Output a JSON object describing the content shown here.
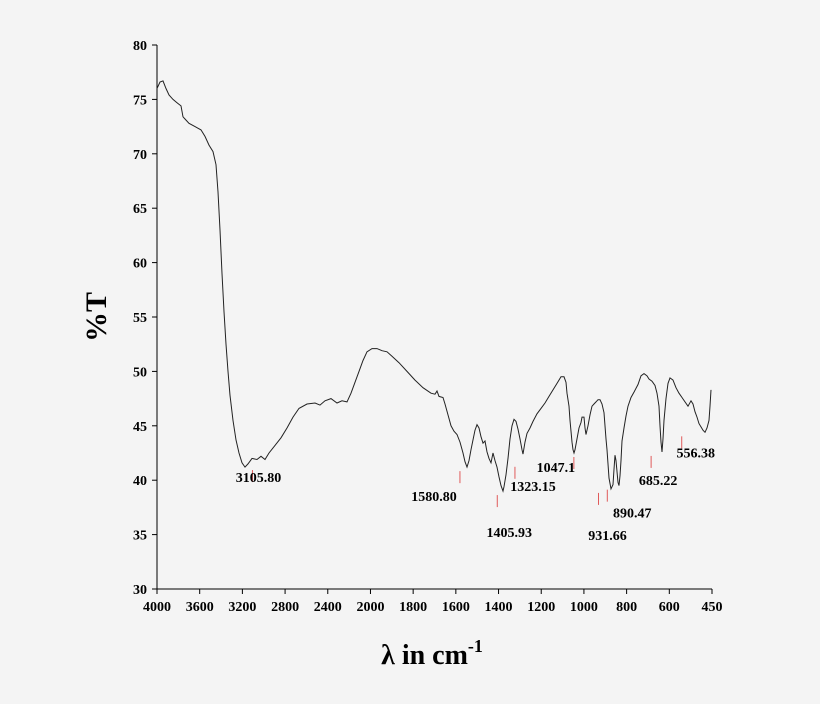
{
  "chart_data": {
    "type": "line",
    "title": "",
    "ylabel": "%T",
    "xlabel": "λ in cm",
    "xlabel_sup": "-1",
    "ylim": [
      30,
      80
    ],
    "y_ticks": [
      "30",
      "35",
      "40",
      "45",
      "50",
      "55",
      "60",
      "65",
      "70",
      "75",
      "80"
    ],
    "x_ticks": [
      "4000",
      "3600",
      "3200",
      "2800",
      "2400",
      "2000",
      "1800",
      "1600",
      "1400",
      "1200",
      "1000",
      "800",
      "600",
      "450"
    ],
    "grid": false,
    "legend": "none",
    "series": [
      {
        "points": [
          [
            0,
            76.0
          ],
          [
            3,
            76.6
          ],
          [
            6,
            76.7
          ],
          [
            9,
            76.0
          ],
          [
            12,
            75.4
          ],
          [
            16,
            75.0
          ],
          [
            20,
            74.7
          ],
          [
            24,
            74.4
          ],
          [
            26,
            73.4
          ],
          [
            28,
            73.2
          ],
          [
            32,
            72.8
          ],
          [
            38,
            72.5
          ],
          [
            44,
            72.2
          ],
          [
            48,
            71.6
          ],
          [
            52,
            70.8
          ],
          [
            56,
            70.2
          ],
          [
            59,
            69.0
          ],
          [
            61,
            66.5
          ],
          [
            63,
            63.0
          ],
          [
            65,
            59.0
          ],
          [
            67,
            55.5
          ],
          [
            69,
            52.5
          ],
          [
            71,
            50.0
          ],
          [
            73,
            47.8
          ],
          [
            76,
            45.5
          ],
          [
            79,
            43.7
          ],
          [
            82,
            42.5
          ],
          [
            85,
            41.6
          ],
          [
            88,
            41.2
          ],
          [
            91,
            41.5
          ],
          [
            95,
            42.0
          ],
          [
            100,
            41.9
          ],
          [
            104,
            42.2
          ],
          [
            108,
            41.9
          ],
          [
            112,
            42.5
          ],
          [
            118,
            43.2
          ],
          [
            124,
            43.9
          ],
          [
            130,
            44.8
          ],
          [
            136,
            45.8
          ],
          [
            142,
            46.6
          ],
          [
            150,
            47.0
          ],
          [
            158,
            47.1
          ],
          [
            163,
            46.9
          ],
          [
            168,
            47.3
          ],
          [
            174,
            47.5
          ],
          [
            180,
            47.1
          ],
          [
            185,
            47.3
          ],
          [
            190,
            47.2
          ],
          [
            194,
            48.0
          ],
          [
            198,
            49.0
          ],
          [
            202,
            50.0
          ],
          [
            206,
            51.0
          ],
          [
            210,
            51.8
          ],
          [
            215,
            52.1
          ],
          [
            220,
            52.1
          ],
          [
            225,
            51.9
          ],
          [
            230,
            51.8
          ],
          [
            235,
            51.4
          ],
          [
            242,
            50.8
          ],
          [
            250,
            50.0
          ],
          [
            258,
            49.2
          ],
          [
            266,
            48.5
          ],
          [
            274,
            48.0
          ],
          [
            278,
            47.9
          ],
          [
            280,
            48.2
          ],
          [
            282,
            47.7
          ],
          [
            286,
            47.6
          ],
          [
            288,
            47.0
          ],
          [
            291,
            46.0
          ],
          [
            294,
            45.0
          ],
          [
            297,
            44.5
          ],
          [
            300,
            44.2
          ],
          [
            303,
            43.5
          ],
          [
            306,
            42.5
          ],
          [
            308,
            41.7
          ],
          [
            310,
            41.2
          ],
          [
            312,
            41.8
          ],
          [
            314,
            42.8
          ],
          [
            316,
            43.7
          ],
          [
            318,
            44.6
          ],
          [
            320,
            45.1
          ],
          [
            322,
            44.8
          ],
          [
            324,
            44.0
          ],
          [
            326,
            43.4
          ],
          [
            328,
            43.6
          ],
          [
            330,
            42.6
          ],
          [
            332,
            42.0
          ],
          [
            334,
            41.6
          ],
          [
            336,
            42.5
          ],
          [
            338,
            41.8
          ],
          [
            340,
            41.2
          ],
          [
            342,
            40.3
          ],
          [
            344,
            39.5
          ],
          [
            346,
            39.0
          ],
          [
            347,
            39.4
          ],
          [
            349,
            40.5
          ],
          [
            351,
            42.0
          ],
          [
            353,
            43.8
          ],
          [
            355,
            45.0
          ],
          [
            357,
            45.6
          ],
          [
            359,
            45.4
          ],
          [
            361,
            44.7
          ],
          [
            363,
            43.8
          ],
          [
            365,
            42.8
          ],
          [
            366,
            42.4
          ],
          [
            368,
            43.5
          ],
          [
            370,
            44.3
          ],
          [
            373,
            44.8
          ],
          [
            376,
            45.4
          ],
          [
            380,
            46.1
          ],
          [
            384,
            46.6
          ],
          [
            388,
            47.1
          ],
          [
            392,
            47.7
          ],
          [
            396,
            48.3
          ],
          [
            400,
            48.9
          ],
          [
            404,
            49.5
          ],
          [
            407,
            49.5
          ],
          [
            409,
            49.0
          ],
          [
            410,
            48.0
          ],
          [
            412,
            46.8
          ],
          [
            413,
            45.5
          ],
          [
            414,
            44.5
          ],
          [
            415,
            43.5
          ],
          [
            416,
            42.8
          ],
          [
            417,
            42.5
          ],
          [
            418,
            42.8
          ],
          [
            420,
            43.8
          ],
          [
            422,
            44.8
          ],
          [
            424,
            45.3
          ],
          [
            425,
            45.8
          ],
          [
            427,
            45.8
          ],
          [
            428,
            44.8
          ],
          [
            429,
            44.2
          ],
          [
            431,
            45.0
          ],
          [
            433,
            46.0
          ],
          [
            435,
            46.8
          ],
          [
            437,
            47.0
          ],
          [
            439,
            47.2
          ],
          [
            441,
            47.4
          ],
          [
            443,
            47.4
          ],
          [
            445,
            47.0
          ],
          [
            447,
            46.2
          ],
          [
            448,
            45.0
          ],
          [
            449,
            43.8
          ],
          [
            450,
            42.8
          ],
          [
            451,
            41.5
          ],
          [
            452,
            40.2
          ],
          [
            454,
            39.2
          ],
          [
            456,
            39.6
          ],
          [
            457,
            41.0
          ],
          [
            458,
            42.3
          ],
          [
            459,
            41.8
          ],
          [
            461,
            39.8
          ],
          [
            462,
            39.5
          ],
          [
            463,
            40.4
          ],
          [
            464,
            41.8
          ],
          [
            465,
            43.6
          ],
          [
            467,
            44.8
          ],
          [
            469,
            45.9
          ],
          [
            471,
            46.8
          ],
          [
            474,
            47.6
          ],
          [
            477,
            48.1
          ],
          [
            481,
            48.8
          ],
          [
            484,
            49.6
          ],
          [
            487,
            49.8
          ],
          [
            490,
            49.6
          ],
          [
            492,
            49.3
          ],
          [
            495,
            49.1
          ],
          [
            498,
            48.7
          ],
          [
            500,
            48.0
          ],
          [
            502,
            46.8
          ],
          [
            503,
            45.0
          ],
          [
            504,
            43.5
          ],
          [
            505,
            42.6
          ],
          [
            506,
            43.8
          ],
          [
            507,
            45.5
          ],
          [
            509,
            47.5
          ],
          [
            511,
            48.9
          ],
          [
            513,
            49.4
          ],
          [
            516,
            49.2
          ],
          [
            519,
            48.5
          ],
          [
            522,
            48.0
          ],
          [
            525,
            47.6
          ],
          [
            528,
            47.2
          ],
          [
            531,
            46.8
          ],
          [
            534,
            47.3
          ],
          [
            536,
            47.0
          ],
          [
            538,
            46.3
          ],
          [
            540,
            45.8
          ],
          [
            542,
            45.2
          ],
          [
            544,
            44.9
          ],
          [
            546,
            44.6
          ],
          [
            548,
            44.4
          ],
          [
            550,
            44.8
          ],
          [
            552,
            45.5
          ],
          [
            553,
            46.8
          ],
          [
            554,
            48.3
          ]
        ]
      }
    ],
    "annotations": [
      {
        "label": "3105.80",
        "x": 3105.8,
        "y": 41.3
      },
      {
        "label": "1580.80",
        "x": 1580.8,
        "y": 41.2
      },
      {
        "label": "1405.93",
        "x": 1405.93,
        "y": 39.0
      },
      {
        "label": "1323.15",
        "x": 1323.15,
        "y": 41.6
      },
      {
        "label": "1047.1",
        "x": 1047.1,
        "y": 42.5
      },
      {
        "label": "931.66",
        "x": 931.66,
        "y": 39.2
      },
      {
        "label": "890.47",
        "x": 890.47,
        "y": 39.5
      },
      {
        "label": "685.22",
        "x": 685.22,
        "y": 42.6
      },
      {
        "label": "556.38",
        "x": 556.38,
        "y": 44.4
      }
    ]
  }
}
